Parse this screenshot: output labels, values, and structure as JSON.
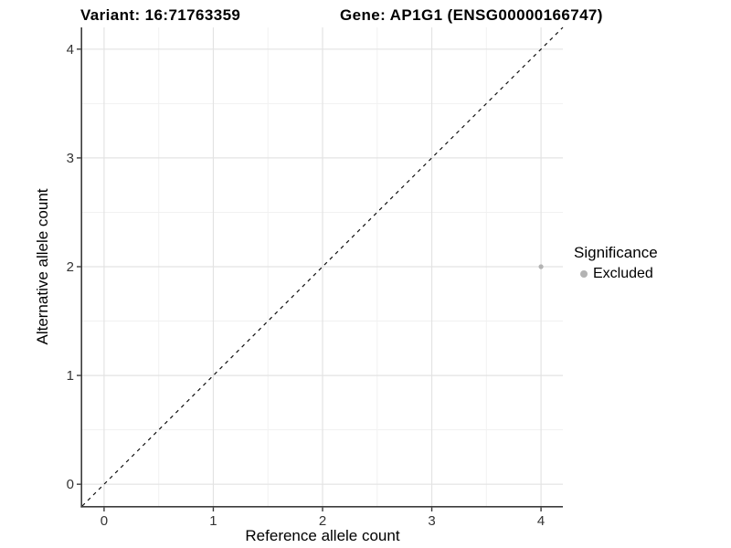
{
  "chart_data": {
    "type": "scatter",
    "title_left": "Variant: 16:71763359",
    "title_right": "Gene: AP1G1 (ENSG00000166747)",
    "xlabel": "Reference allele count",
    "ylabel": "Alternative allele count",
    "xlim": [
      -0.2,
      4.2
    ],
    "ylim": [
      -0.2,
      4.2
    ],
    "xticks": [
      0,
      1,
      2,
      3,
      4
    ],
    "yticks": [
      0,
      1,
      2,
      3,
      4
    ],
    "grid": "major and minor, horizontal and vertical, on white background",
    "identity_line": {
      "style": "dashed",
      "color": "#111111",
      "from": [
        -0.2,
        -0.2
      ],
      "to": [
        4.2,
        4.2
      ]
    },
    "series": [
      {
        "name": "Excluded",
        "color": "#b3b3b3",
        "points": [
          {
            "x": 4,
            "y": 2
          }
        ]
      }
    ],
    "legend": {
      "title": "Significance",
      "position": "right",
      "entries": [
        {
          "label": "Excluded",
          "color": "#b3b3b3"
        }
      ]
    },
    "colors": {
      "axis_line": "#3c3c3c",
      "tick_mark": "#3c3c3c",
      "tick_label": "#333333",
      "grid_major": "#e3e3e3",
      "grid_minor": "#f1f1f1",
      "background": "#ffffff"
    }
  }
}
